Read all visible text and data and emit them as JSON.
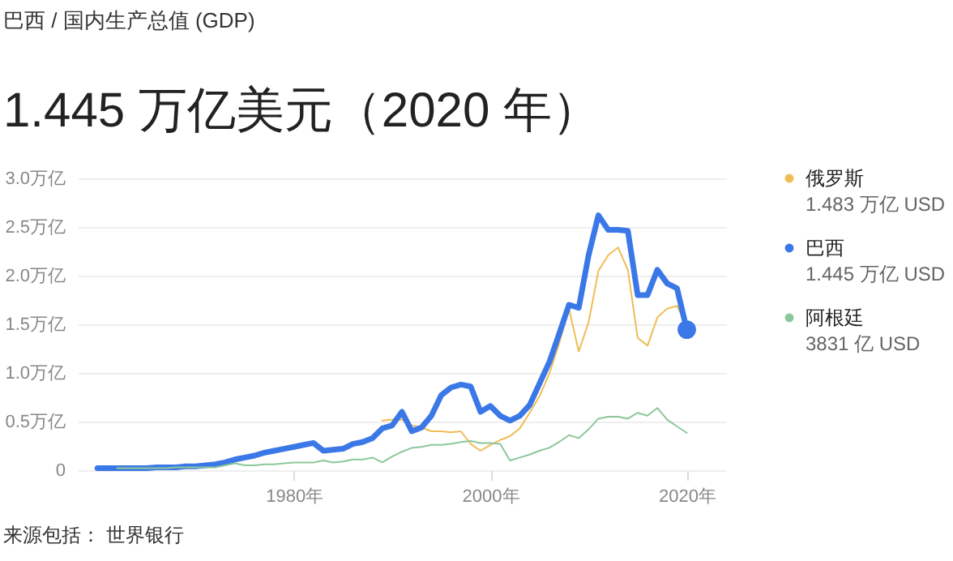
{
  "chart_data": {
    "type": "line",
    "subtitle": "巴西 / 国内生产总值 (GDP)",
    "title": "1.445 万亿美元（2020 年）",
    "x": [
      1960,
      1961,
      1962,
      1963,
      1964,
      1965,
      1966,
      1967,
      1968,
      1969,
      1970,
      1971,
      1972,
      1973,
      1974,
      1975,
      1976,
      1977,
      1978,
      1979,
      1980,
      1981,
      1982,
      1983,
      1984,
      1985,
      1986,
      1987,
      1988,
      1989,
      1990,
      1991,
      1992,
      1993,
      1994,
      1995,
      1996,
      1997,
      1998,
      1999,
      2000,
      2001,
      2002,
      2003,
      2004,
      2005,
      2006,
      2007,
      2008,
      2009,
      2010,
      2011,
      2012,
      2013,
      2014,
      2015,
      2016,
      2017,
      2018,
      2019,
      2020
    ],
    "series": [
      {
        "name": "俄罗斯",
        "color": "#f0bd55",
        "x": [
          1989,
          1990,
          1991,
          1992,
          1993,
          1994,
          1995,
          1996,
          1997,
          1998,
          1999,
          2000,
          2001,
          2002,
          2003,
          2004,
          2005,
          2006,
          2007,
          2008,
          2009,
          2010,
          2011,
          2012,
          2013,
          2014,
          2015,
          2016,
          2017,
          2018,
          2019,
          2020
        ],
        "values": [
          0.51,
          0.52,
          0.52,
          0.46,
          0.44,
          0.4,
          0.4,
          0.39,
          0.4,
          0.27,
          0.2,
          0.26,
          0.31,
          0.35,
          0.43,
          0.59,
          0.76,
          0.99,
          1.3,
          1.66,
          1.22,
          1.52,
          2.05,
          2.21,
          2.29,
          2.06,
          1.36,
          1.28,
          1.57,
          1.66,
          1.69,
          1.483
        ]
      },
      {
        "name": "巴西",
        "color": "#3b78e7",
        "values": [
          0.02,
          0.02,
          0.02,
          0.02,
          0.02,
          0.02,
          0.03,
          0.03,
          0.03,
          0.04,
          0.04,
          0.05,
          0.06,
          0.08,
          0.11,
          0.13,
          0.15,
          0.18,
          0.2,
          0.22,
          0.24,
          0.26,
          0.28,
          0.2,
          0.21,
          0.22,
          0.27,
          0.29,
          0.33,
          0.43,
          0.46,
          0.6,
          0.4,
          0.44,
          0.56,
          0.77,
          0.85,
          0.88,
          0.86,
          0.6,
          0.66,
          0.56,
          0.51,
          0.56,
          0.67,
          0.89,
          1.11,
          1.4,
          1.7,
          1.67,
          2.21,
          2.62,
          2.47,
          2.47,
          2.46,
          1.8,
          1.8,
          2.06,
          1.92,
          1.87,
          1.445
        ]
      },
      {
        "name": "阿根廷",
        "color": "#8cc79b",
        "x": [
          1962,
          1963,
          1964,
          1965,
          1966,
          1967,
          1968,
          1969,
          1970,
          1971,
          1972,
          1973,
          1974,
          1975,
          1976,
          1977,
          1978,
          1979,
          1980,
          1981,
          1982,
          1983,
          1984,
          1985,
          1986,
          1987,
          1988,
          1989,
          1990,
          1991,
          1992,
          1993,
          1994,
          1995,
          1996,
          1997,
          1998,
          1999,
          2000,
          2001,
          2002,
          2003,
          2004,
          2005,
          2006,
          2007,
          2008,
          2009,
          2010,
          2011,
          2012,
          2013,
          2014,
          2015,
          2016,
          2017,
          2018,
          2019,
          2020
        ],
        "values": [
          0.02,
          0.02,
          0.02,
          0.02,
          0.02,
          0.02,
          0.03,
          0.03,
          0.03,
          0.03,
          0.03,
          0.05,
          0.07,
          0.05,
          0.05,
          0.06,
          0.06,
          0.07,
          0.08,
          0.08,
          0.08,
          0.1,
          0.08,
          0.09,
          0.11,
          0.11,
          0.13,
          0.08,
          0.14,
          0.19,
          0.23,
          0.24,
          0.26,
          0.26,
          0.27,
          0.29,
          0.3,
          0.28,
          0.28,
          0.27,
          0.1,
          0.13,
          0.16,
          0.2,
          0.23,
          0.29,
          0.36,
          0.33,
          0.42,
          0.53,
          0.55,
          0.55,
          0.53,
          0.59,
          0.56,
          0.64,
          0.52,
          0.45,
          0.3831
        ]
      },
      {
        "type": "scatter",
        "color": "#3b78e7",
        "x": [
          2020
        ],
        "values": [
          1.445
        ]
      }
    ],
    "xlim": [
      1958,
      2024
    ],
    "xticks": [
      {
        "value": 1980,
        "label": "1980年"
      },
      {
        "value": 2000,
        "label": "2000年"
      },
      {
        "value": 2020,
        "label": "2020年"
      }
    ],
    "ylim": [
      0,
      3
    ],
    "yticks": [
      0,
      {
        "value": 0.5,
        "label": "0.5万亿"
      },
      {
        "value": 1,
        "label": "1.0万亿"
      },
      {
        "value": 1.5,
        "label": "1.5万亿"
      },
      {
        "value": 2,
        "label": "2.0万亿"
      },
      {
        "value": 2.5,
        "label": "2.5万亿"
      },
      {
        "value": 3,
        "label": "3.0万亿"
      }
    ],
    "grid": "y",
    "legend": "right",
    "annotations": [
      "1.483 万亿 USD",
      "1.445 万亿 USD",
      "3831 亿 USD",
      "来源包括： 世界银行"
    ]
  }
}
